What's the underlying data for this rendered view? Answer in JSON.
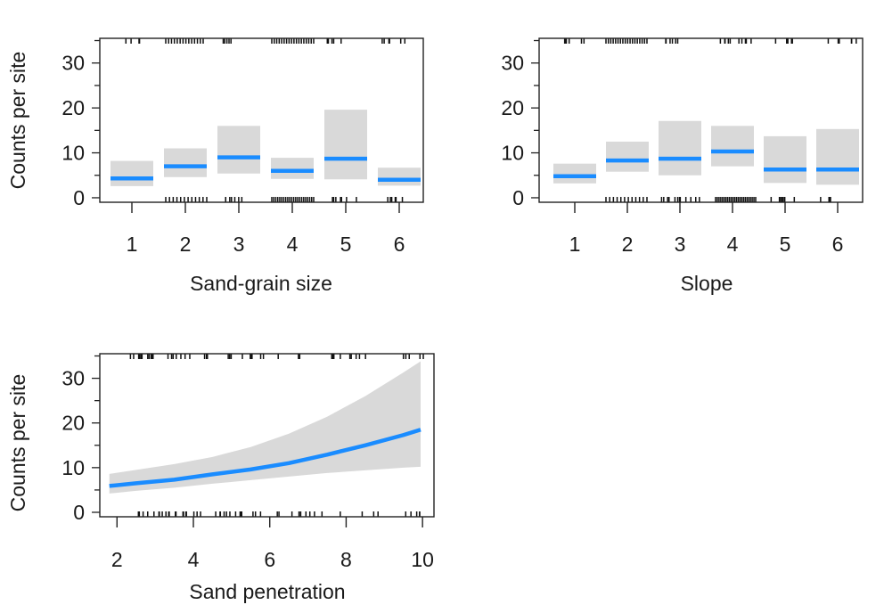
{
  "chart_data": [
    {
      "type": "bar",
      "xlabel": "Sand-grain size",
      "ylabel": "Counts per site",
      "categories": [
        "1",
        "2",
        "3",
        "4",
        "5",
        "6"
      ],
      "values": [
        4.3,
        7.0,
        9.0,
        6.0,
        8.7,
        4.0
      ],
      "lower": [
        2.6,
        4.6,
        5.4,
        4.2,
        4.1,
        2.7
      ],
      "upper": [
        8.2,
        11.0,
        16.0,
        8.9,
        19.6,
        6.7
      ],
      "yticks": [
        0,
        10,
        20,
        30
      ],
      "ylim": [
        -1,
        35.5
      ],
      "grid": false,
      "series_color": "#1a8cff",
      "ci_color": "#d9d9d9"
    },
    {
      "type": "bar",
      "xlabel": "Slope",
      "ylabel": "",
      "categories": [
        "1",
        "2",
        "3",
        "4",
        "5",
        "6"
      ],
      "values": [
        4.8,
        8.3,
        8.7,
        10.3,
        6.3,
        6.3
      ],
      "lower": [
        3.2,
        5.8,
        5.0,
        7.0,
        3.3,
        2.9
      ],
      "upper": [
        7.6,
        12.5,
        17.1,
        16.0,
        13.7,
        15.3
      ],
      "yticks": [
        0,
        10,
        20,
        30
      ],
      "ylim": [
        -1,
        35.5
      ],
      "grid": false,
      "series_color": "#1a8cff",
      "ci_color": "#d9d9d9"
    },
    {
      "type": "line",
      "xlabel": "Sand penetration",
      "ylabel": "Counts per site",
      "x": [
        1.8,
        2.5,
        3.5,
        4.5,
        5.5,
        6.5,
        7.5,
        8.5,
        9.5,
        9.95
      ],
      "values": [
        5.9,
        6.5,
        7.3,
        8.5,
        9.6,
        11.0,
        12.9,
        15.0,
        17.3,
        18.5
      ],
      "lower": [
        4.2,
        4.8,
        5.5,
        6.4,
        7.2,
        8.0,
        8.8,
        9.4,
        10.0,
        10.2
      ],
      "upper": [
        8.6,
        9.5,
        10.8,
        12.4,
        14.6,
        17.6,
        21.4,
        26.0,
        31.3,
        33.8
      ],
      "xticks": [
        2,
        4,
        6,
        8,
        10
      ],
      "yticks": [
        0,
        10,
        20,
        30
      ],
      "xlim": [
        1.55,
        10.3
      ],
      "ylim": [
        -1,
        35.5
      ],
      "grid": false,
      "series_color": "#1a8cff",
      "ci_color": "#d9d9d9"
    }
  ]
}
